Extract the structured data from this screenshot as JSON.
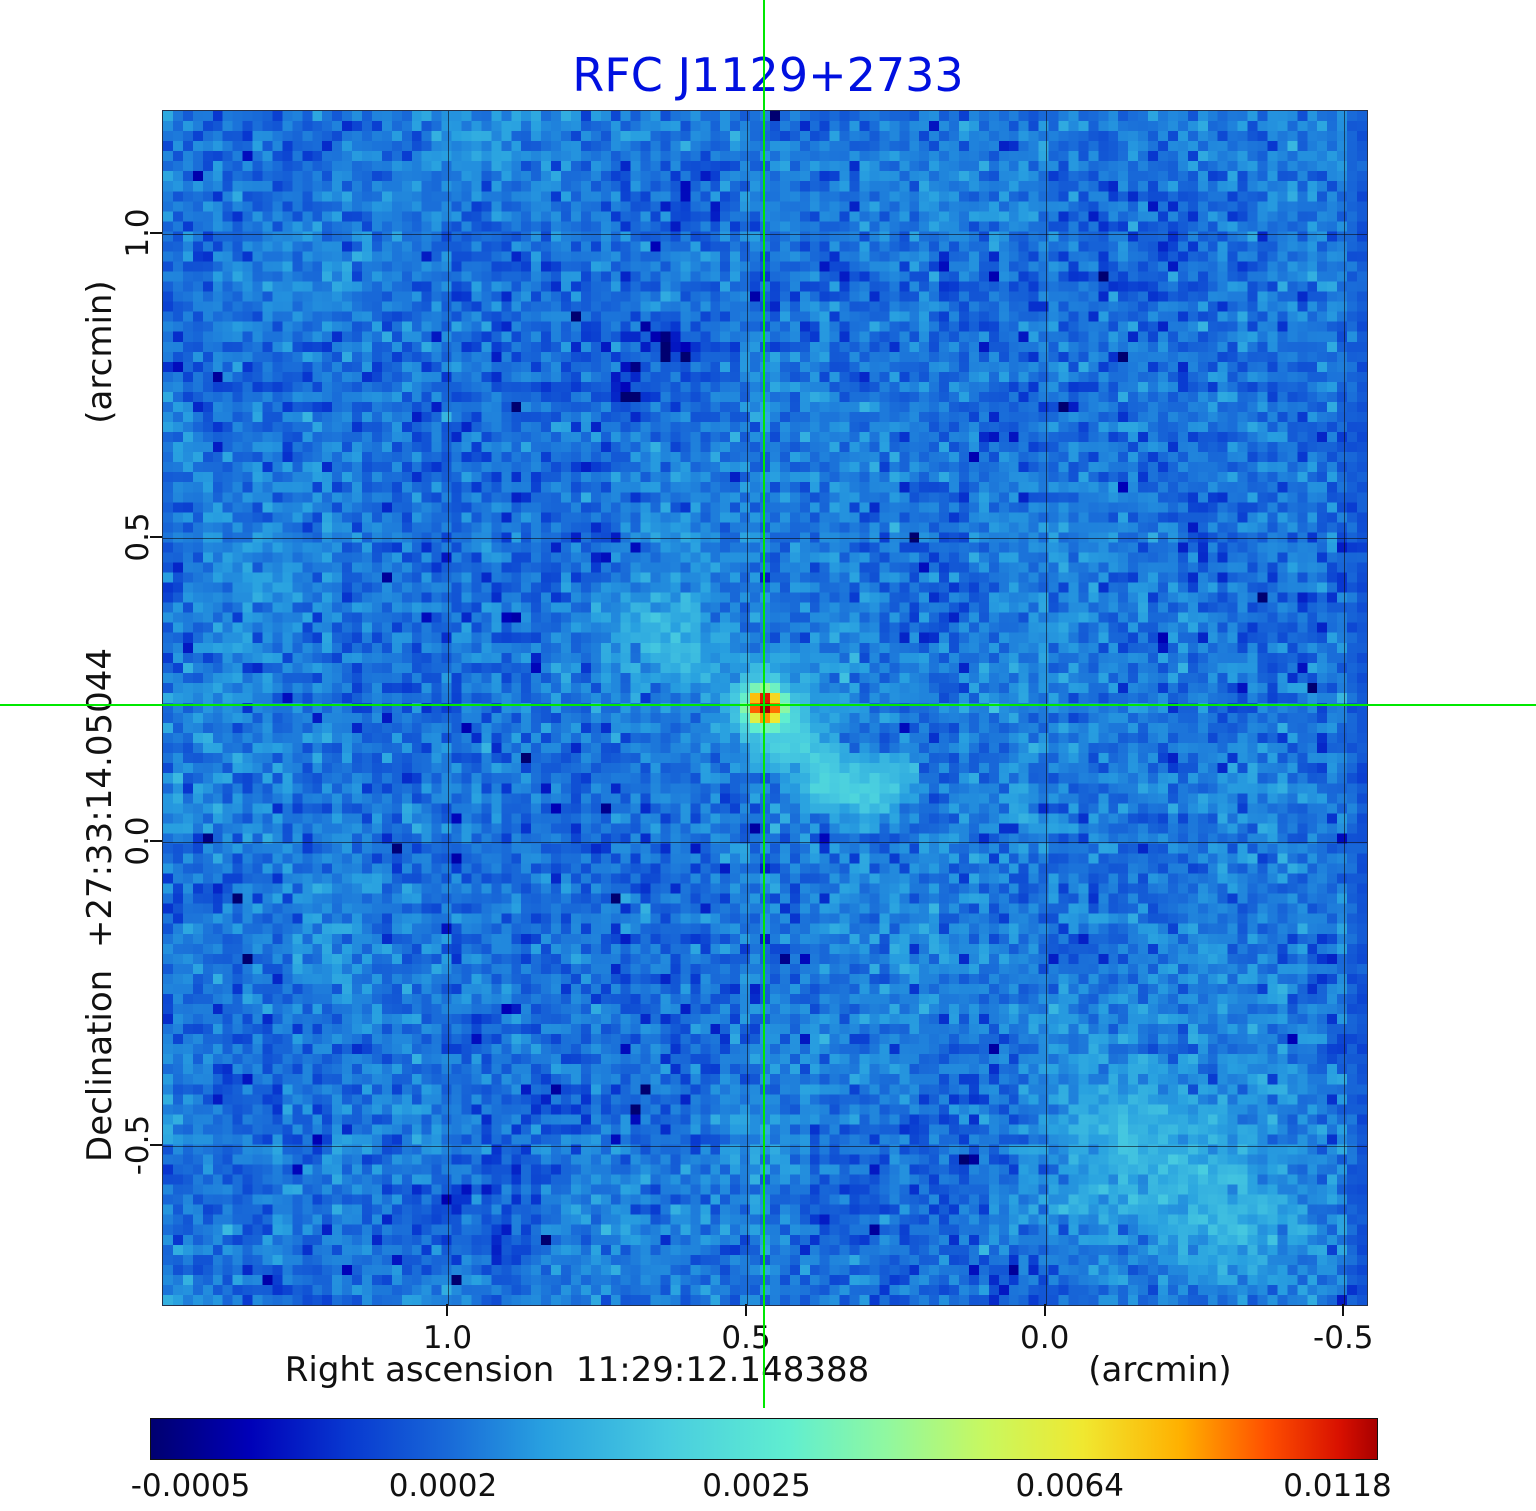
{
  "title": "RFC J1129+2733",
  "title_color": "#0010e0",
  "axes": {
    "y_unit": "(arcmin)",
    "y_label": "Declination  +27:33:14.05044",
    "x_label": "Right ascension  11:29:12.148388",
    "x_unit": "(arcmin)",
    "x_ticks": [
      "1.0",
      "0.5",
      "0.0",
      "-0.5"
    ],
    "y_ticks": [
      "1.0",
      "0.5",
      "0.0",
      "-0.5"
    ]
  },
  "colorbar": {
    "tick_labels": [
      "-0.0005",
      "0.0002",
      "0.0025",
      "0.0064",
      "0.0118"
    ]
  },
  "chart_data": {
    "type": "heatmap",
    "title": "RFC J1129+2733",
    "xlabel": "Right ascension 11:29:12.148388 (arcmin)",
    "ylabel": "Declination +27:33:14.05044 (arcmin)",
    "x_axis": {
      "left_value": 1.478,
      "right_value": -0.538,
      "tick_values": [
        1.0,
        0.5,
        0.0,
        -0.5
      ]
    },
    "y_axis": {
      "top_value": 1.202,
      "bottom_value": -0.761,
      "tick_values": [
        1.0,
        0.5,
        0.0,
        -0.5
      ]
    },
    "grid": true,
    "grid_color": "#14141c",
    "crosshair": {
      "x": 0.47,
      "y": 0.223,
      "color": "#00e800"
    },
    "source_peak": {
      "x": 0.47,
      "y": 0.223,
      "value": 0.0118
    },
    "background": {
      "mean": 0.00032,
      "noise_sigma": 0.0003
    },
    "colorbar": {
      "min": -0.0005,
      "max": 0.0118,
      "scale": "sqrt",
      "tick_values": [
        -0.0005,
        0.0002,
        0.0025,
        0.0064,
        0.0118
      ]
    },
    "colormap_stops": [
      [
        0.0,
        "#000070"
      ],
      [
        0.08,
        "#0000b8"
      ],
      [
        0.16,
        "#0838d0"
      ],
      [
        0.24,
        "#1868d8"
      ],
      [
        0.32,
        "#28a0e0"
      ],
      [
        0.42,
        "#48cce0"
      ],
      [
        0.52,
        "#60eed0"
      ],
      [
        0.6,
        "#90f8a0"
      ],
      [
        0.68,
        "#c8f860"
      ],
      [
        0.76,
        "#f0e830"
      ],
      [
        0.84,
        "#ffb000"
      ],
      [
        0.91,
        "#ff5000"
      ],
      [
        0.97,
        "#d81000"
      ],
      [
        1.0,
        "#a80000"
      ]
    ],
    "noise_seed": 20333,
    "grid_cells": {
      "nx": 121,
      "ny": 119
    },
    "features": [
      {
        "x": 0.47,
        "y": 0.223,
        "amp": 0.0115,
        "sigma": 0.018,
        "note": "central point source"
      },
      {
        "x": 0.47,
        "y": 0.223,
        "amp": 0.0016,
        "sigma": 0.045,
        "note": "source halo"
      },
      {
        "x": 0.42,
        "y": 0.15,
        "amp": 0.001,
        "sigma": 0.035,
        "note": "jet streak SW"
      },
      {
        "x": 0.36,
        "y": 0.1,
        "amp": 0.0013,
        "sigma": 0.03,
        "note": "jet streak SW"
      },
      {
        "x": 0.3,
        "y": 0.085,
        "amp": 0.0011,
        "sigma": 0.03,
        "note": "jet streak SW"
      },
      {
        "x": 0.25,
        "y": 0.1,
        "amp": 0.0007,
        "sigma": 0.03,
        "note": "jet streak SW"
      },
      {
        "x": 0.68,
        "y": 0.36,
        "amp": 0.0006,
        "sigma": 0.05,
        "note": "faint arc NE of source"
      },
      {
        "x": 0.6,
        "y": 0.31,
        "amp": 0.0006,
        "sigma": 0.04,
        "note": "faint arc NE of source"
      },
      {
        "x": -0.15,
        "y": -0.5,
        "amp": 0.0007,
        "sigma": 0.1,
        "note": "diffuse patch lower-right"
      },
      {
        "x": -0.3,
        "y": -0.62,
        "amp": 0.0008,
        "sigma": 0.08,
        "note": "diffuse patch lower-right"
      },
      {
        "x": -0.05,
        "y": -0.35,
        "amp": 0.0004,
        "sigma": 0.09,
        "note": "diffuse patch"
      },
      {
        "x": 0.63,
        "y": 0.82,
        "amp": -0.0007,
        "sigma": 0.02,
        "note": "dark spot upper-middle"
      },
      {
        "x": 0.7,
        "y": 0.74,
        "amp": -0.0005,
        "sigma": 0.018,
        "note": "dark spot upper-middle"
      }
    ]
  }
}
